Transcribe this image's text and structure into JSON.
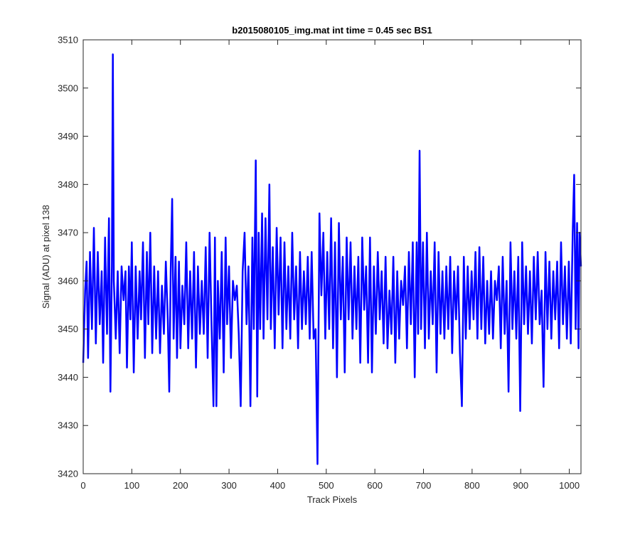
{
  "chart_data": {
    "type": "line",
    "title": "b2015080105_img.mat int time = 0.45 sec   BS1",
    "xlabel": "Track Pixels",
    "ylabel": "Signal (ADU) at pixel 138",
    "xlim": [
      0,
      1024
    ],
    "ylim": [
      3420,
      3510
    ],
    "xticks": [
      0,
      100,
      200,
      300,
      400,
      500,
      600,
      700,
      800,
      900,
      1000
    ],
    "yticks": [
      3420,
      3430,
      3440,
      3450,
      3460,
      3470,
      3480,
      3490,
      3500,
      3510
    ],
    "grid": false,
    "legend": "none",
    "series": [
      {
        "color": "#0000ff",
        "points": [
          [
            0,
            3443
          ],
          [
            4,
            3458
          ],
          [
            7,
            3464
          ],
          [
            10,
            3444
          ],
          [
            14,
            3466
          ],
          [
            18,
            3450
          ],
          [
            22,
            3471
          ],
          [
            26,
            3447
          ],
          [
            30,
            3466
          ],
          [
            34,
            3451
          ],
          [
            38,
            3462
          ],
          [
            41,
            3443
          ],
          [
            45,
            3469
          ],
          [
            49,
            3449
          ],
          [
            53,
            3473
          ],
          [
            56,
            3437
          ],
          [
            59,
            3463
          ],
          [
            61,
            3507
          ],
          [
            63,
            3460
          ],
          [
            67,
            3448
          ],
          [
            71,
            3462
          ],
          [
            75,
            3445
          ],
          [
            79,
            3463
          ],
          [
            83,
            3456
          ],
          [
            87,
            3462
          ],
          [
            90,
            3442
          ],
          [
            94,
            3463
          ],
          [
            97,
            3452
          ],
          [
            100,
            3468
          ],
          [
            104,
            3441
          ],
          [
            108,
            3463
          ],
          [
            112,
            3448
          ],
          [
            116,
            3462
          ],
          [
            119,
            3452
          ],
          [
            123,
            3468
          ],
          [
            127,
            3444
          ],
          [
            131,
            3466
          ],
          [
            134,
            3451
          ],
          [
            138,
            3470
          ],
          [
            142,
            3445
          ],
          [
            146,
            3463
          ],
          [
            150,
            3448
          ],
          [
            154,
            3462
          ],
          [
            158,
            3445
          ],
          [
            162,
            3459
          ],
          [
            166,
            3449
          ],
          [
            170,
            3464
          ],
          [
            174,
            3452
          ],
          [
            177,
            3437
          ],
          [
            180,
            3462
          ],
          [
            183,
            3477
          ],
          [
            186,
            3448
          ],
          [
            190,
            3465
          ],
          [
            193,
            3444
          ],
          [
            197,
            3464
          ],
          [
            200,
            3446
          ],
          [
            204,
            3459
          ],
          [
            208,
            3451
          ],
          [
            212,
            3468
          ],
          [
            216,
            3446
          ],
          [
            220,
            3462
          ],
          [
            224,
            3448
          ],
          [
            228,
            3466
          ],
          [
            232,
            3442
          ],
          [
            236,
            3463
          ],
          [
            240,
            3449
          ],
          [
            244,
            3460
          ],
          [
            248,
            3449
          ],
          [
            252,
            3467
          ],
          [
            256,
            3444
          ],
          [
            260,
            3470
          ],
          [
            264,
            3451
          ],
          [
            268,
            3434
          ],
          [
            271,
            3469
          ],
          [
            274,
            3434
          ],
          [
            277,
            3460
          ],
          [
            281,
            3448
          ],
          [
            285,
            3466
          ],
          [
            289,
            3441
          ],
          [
            293,
            3469
          ],
          [
            296,
            3451
          ],
          [
            300,
            3463
          ],
          [
            304,
            3444
          ],
          [
            308,
            3460
          ],
          [
            312,
            3456
          ],
          [
            316,
            3459
          ],
          [
            320,
            3449
          ],
          [
            324,
            3434
          ],
          [
            328,
            3462
          ],
          [
            332,
            3470
          ],
          [
            336,
            3451
          ],
          [
            340,
            3463
          ],
          [
            344,
            3434
          ],
          [
            348,
            3469
          ],
          [
            351,
            3450
          ],
          [
            355,
            3485
          ],
          [
            358,
            3436
          ],
          [
            361,
            3470
          ],
          [
            364,
            3450
          ],
          [
            368,
            3474
          ],
          [
            371,
            3448
          ],
          [
            375,
            3473
          ],
          [
            379,
            3452
          ],
          [
            383,
            3480
          ],
          [
            386,
            3450
          ],
          [
            390,
            3467
          ],
          [
            394,
            3446
          ],
          [
            398,
            3471
          ],
          [
            402,
            3453
          ],
          [
            406,
            3469
          ],
          [
            410,
            3446
          ],
          [
            414,
            3468
          ],
          [
            418,
            3450
          ],
          [
            422,
            3463
          ],
          [
            426,
            3448
          ],
          [
            430,
            3470
          ],
          [
            434,
            3452
          ],
          [
            438,
            3463
          ],
          [
            442,
            3446
          ],
          [
            446,
            3466
          ],
          [
            450,
            3450
          ],
          [
            454,
            3462
          ],
          [
            458,
            3451
          ],
          [
            462,
            3465
          ],
          [
            466,
            3448
          ],
          [
            470,
            3466
          ],
          [
            474,
            3448
          ],
          [
            478,
            3450
          ],
          [
            482,
            3422
          ],
          [
            486,
            3474
          ],
          [
            490,
            3457
          ],
          [
            494,
            3470
          ],
          [
            498,
            3448
          ],
          [
            502,
            3466
          ],
          [
            506,
            3450
          ],
          [
            510,
            3473
          ],
          [
            514,
            3446
          ],
          [
            518,
            3468
          ],
          [
            522,
            3440
          ],
          [
            526,
            3472
          ],
          [
            530,
            3452
          ],
          [
            534,
            3465
          ],
          [
            538,
            3441
          ],
          [
            542,
            3469
          ],
          [
            546,
            3452
          ],
          [
            550,
            3468
          ],
          [
            554,
            3448
          ],
          [
            558,
            3463
          ],
          [
            562,
            3450
          ],
          [
            566,
            3465
          ],
          [
            570,
            3443
          ],
          [
            574,
            3469
          ],
          [
            578,
            3454
          ],
          [
            582,
            3463
          ],
          [
            586,
            3443
          ],
          [
            590,
            3469
          ],
          [
            594,
            3441
          ],
          [
            598,
            3463
          ],
          [
            602,
            3449
          ],
          [
            606,
            3466
          ],
          [
            610,
            3452
          ],
          [
            614,
            3462
          ],
          [
            618,
            3447
          ],
          [
            622,
            3465
          ],
          [
            626,
            3446
          ],
          [
            630,
            3458
          ],
          [
            634,
            3449
          ],
          [
            638,
            3465
          ],
          [
            642,
            3443
          ],
          [
            646,
            3462
          ],
          [
            650,
            3448
          ],
          [
            654,
            3460
          ],
          [
            658,
            3455
          ],
          [
            662,
            3463
          ],
          [
            666,
            3446
          ],
          [
            670,
            3466
          ],
          [
            674,
            3451
          ],
          [
            678,
            3468
          ],
          [
            682,
            3440
          ],
          [
            686,
            3468
          ],
          [
            689,
            3449
          ],
          [
            692,
            3487
          ],
          [
            695,
            3450
          ],
          [
            699,
            3468
          ],
          [
            703,
            3446
          ],
          [
            707,
            3470
          ],
          [
            711,
            3448
          ],
          [
            715,
            3462
          ],
          [
            719,
            3451
          ],
          [
            723,
            3468
          ],
          [
            727,
            3441
          ],
          [
            731,
            3466
          ],
          [
            735,
            3449
          ],
          [
            739,
            3462
          ],
          [
            743,
            3448
          ],
          [
            747,
            3463
          ],
          [
            751,
            3450
          ],
          [
            755,
            3465
          ],
          [
            759,
            3445
          ],
          [
            763,
            3462
          ],
          [
            767,
            3452
          ],
          [
            771,
            3463
          ],
          [
            775,
            3445
          ],
          [
            779,
            3434
          ],
          [
            783,
            3465
          ],
          [
            787,
            3448
          ],
          [
            791,
            3463
          ],
          [
            795,
            3450
          ],
          [
            799,
            3462
          ],
          [
            803,
            3452
          ],
          [
            807,
            3466
          ],
          [
            811,
            3448
          ],
          [
            815,
            3467
          ],
          [
            819,
            3450
          ],
          [
            823,
            3465
          ],
          [
            827,
            3447
          ],
          [
            831,
            3460
          ],
          [
            835,
            3449
          ],
          [
            839,
            3462
          ],
          [
            843,
            3448
          ],
          [
            847,
            3460
          ],
          [
            851,
            3456
          ],
          [
            855,
            3463
          ],
          [
            859,
            3446
          ],
          [
            863,
            3465
          ],
          [
            867,
            3449
          ],
          [
            871,
            3460
          ],
          [
            875,
            3437
          ],
          [
            879,
            3468
          ],
          [
            883,
            3450
          ],
          [
            887,
            3462
          ],
          [
            891,
            3448
          ],
          [
            895,
            3465
          ],
          [
            899,
            3433
          ],
          [
            903,
            3468
          ],
          [
            907,
            3451
          ],
          [
            911,
            3463
          ],
          [
            915,
            3449
          ],
          [
            919,
            3462
          ],
          [
            923,
            3447
          ],
          [
            927,
            3465
          ],
          [
            931,
            3452
          ],
          [
            935,
            3466
          ],
          [
            939,
            3451
          ],
          [
            943,
            3458
          ],
          [
            947,
            3438
          ],
          [
            951,
            3466
          ],
          [
            955,
            3450
          ],
          [
            959,
            3464
          ],
          [
            963,
            3448
          ],
          [
            967,
            3462
          ],
          [
            971,
            3452
          ],
          [
            975,
            3464
          ],
          [
            979,
            3446
          ],
          [
            983,
            3468
          ],
          [
            987,
            3451
          ],
          [
            991,
            3463
          ],
          [
            995,
            3448
          ],
          [
            999,
            3464
          ],
          [
            1003,
            3447
          ],
          [
            1007,
            3470
          ],
          [
            1010,
            3482
          ],
          [
            1013,
            3450
          ],
          [
            1016,
            3472
          ],
          [
            1019,
            3446
          ],
          [
            1021,
            3470
          ],
          [
            1024,
            3463
          ]
        ]
      }
    ]
  }
}
